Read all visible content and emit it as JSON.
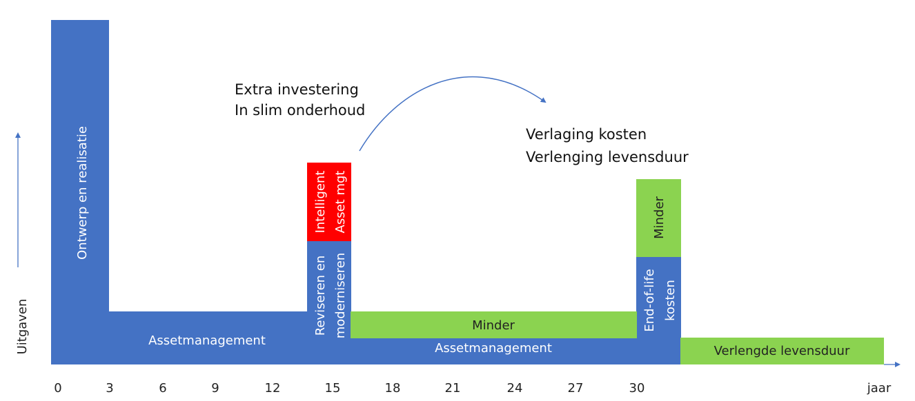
{
  "colors": {
    "blue": "#4472C4",
    "green": "#8BD350",
    "red": "#FF0000",
    "axis_arrow": "#4472C4",
    "text_dark": "#222222"
  },
  "axis": {
    "y_label": "Uitgaven",
    "x_label": "jaar",
    "x_ticks": [
      "0",
      "3",
      "6",
      "9",
      "12",
      "15",
      "18",
      "21",
      "24",
      "27",
      "30"
    ]
  },
  "blocks": {
    "ontwerp": "Ontwerp en realisatie",
    "asset_management_1": "Assetmanagement",
    "reviseren_line1": "Reviseren en",
    "reviseren_line2": "moderniseren",
    "intelligent_line1": "Intelligent",
    "intelligent_line2": "Asset mgt",
    "minder_1": "Minder",
    "asset_management_2": "Assetmanagement",
    "end_of_life_line1": "End-of-life",
    "end_of_life_line2": "kosten",
    "minder_2": "Minder",
    "verlengde_levensduur": "Verlengde levensduur"
  },
  "annotations": {
    "extra_line1": "Extra investering",
    "extra_line2": "In slim onderhoud",
    "verlaging_line1": "Verlaging kosten",
    "verlaging_line2": "Verlenging levensduur"
  }
}
